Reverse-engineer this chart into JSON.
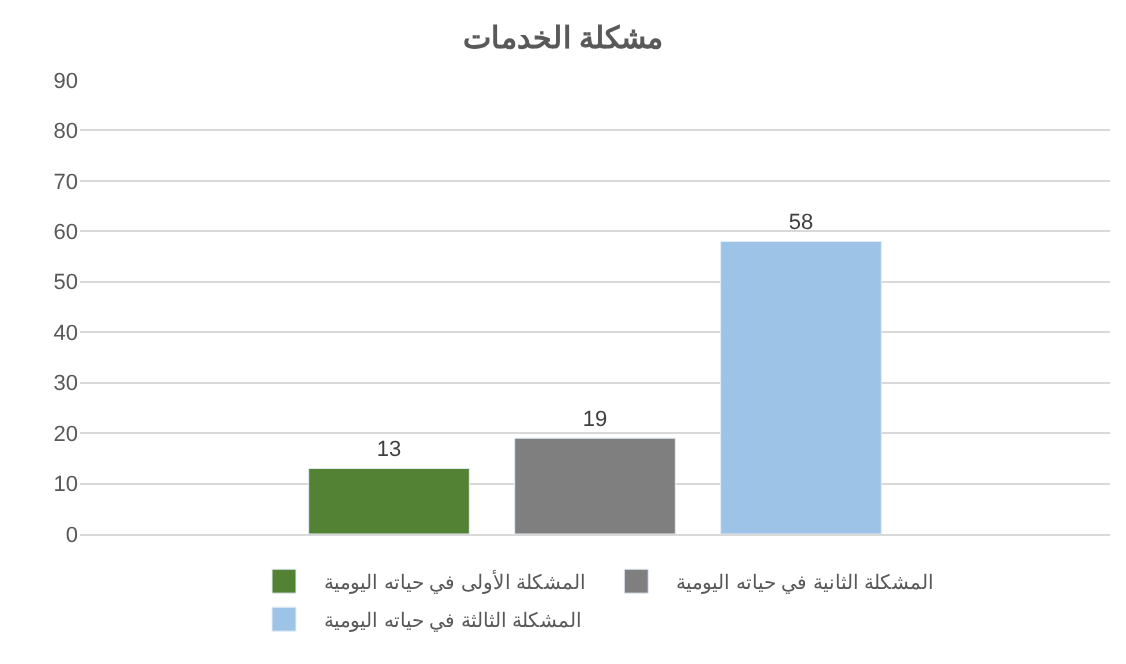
{
  "chart_data": {
    "type": "bar",
    "title": "مشكلة الخدمات",
    "categories": [
      null
    ],
    "series": [
      {
        "name": "المشكلة الأولى في حياته اليومية",
        "color": "#548235",
        "values": [
          13
        ]
      },
      {
        "name": "المشكلة الثانية في حياته اليومية",
        "color": "#7f7f7f",
        "values": [
          19
        ]
      },
      {
        "name": "المشكلة الثالثة في حياته اليومية",
        "color": "#9dc3e6",
        "values": [
          58
        ]
      }
    ],
    "ylim": [
      0,
      90
    ],
    "yticks": [
      0,
      10,
      20,
      30,
      40,
      50,
      60,
      70,
      80,
      90
    ],
    "grid": "y",
    "legend": "bottom",
    "data_labels": true
  }
}
